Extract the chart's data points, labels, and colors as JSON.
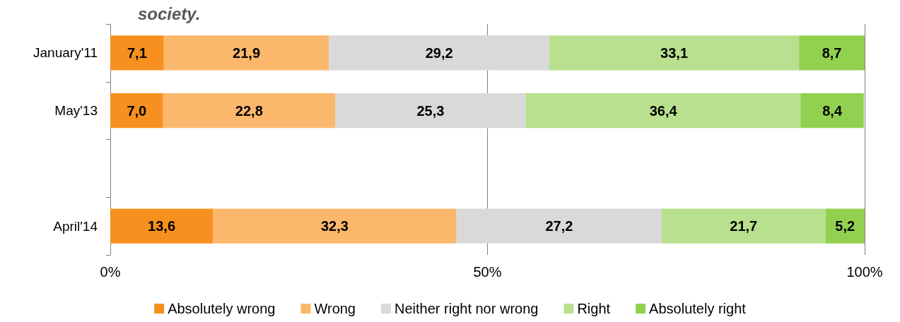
{
  "chart_data": {
    "type": "bar",
    "orientation": "horizontal",
    "stacked": true,
    "title": "society.",
    "categories": [
      "January'11",
      "May'13",
      null,
      "April'14"
    ],
    "series": [
      {
        "name": "Absolutely wrong",
        "color": "#f7901e",
        "values": [
          7.1,
          7.0,
          null,
          13.6
        ],
        "value_labels": [
          "7,1",
          "7,0",
          null,
          "13,6"
        ]
      },
      {
        "name": "Wrong",
        "color": "#fbb76b",
        "values": [
          21.9,
          22.8,
          null,
          32.3
        ],
        "value_labels": [
          "21,9",
          "22,8",
          null,
          "32,3"
        ]
      },
      {
        "name": "Neither right nor wrong",
        "color": "#d9d9d9",
        "values": [
          29.2,
          25.3,
          null,
          27.2
        ],
        "value_labels": [
          "29,2",
          "25,3",
          null,
          "27,2"
        ]
      },
      {
        "name": "Right",
        "color": "#b8e08e",
        "values": [
          33.1,
          36.4,
          null,
          21.7
        ],
        "value_labels": [
          "33,1",
          "36,4",
          null,
          "21,7"
        ]
      },
      {
        "name": "Absolutely right",
        "color": "#92d050",
        "values": [
          8.7,
          8.4,
          null,
          5.2
        ],
        "value_labels": [
          "8,7",
          "8,4",
          null,
          "5,2"
        ]
      }
    ],
    "xlim": [
      0,
      100
    ],
    "xticks": [
      {
        "value": 0,
        "label": "0%"
      },
      {
        "value": 50,
        "label": "50%"
      },
      {
        "value": 100,
        "label": "100%"
      }
    ],
    "grid": "x",
    "legend": "bottom"
  }
}
